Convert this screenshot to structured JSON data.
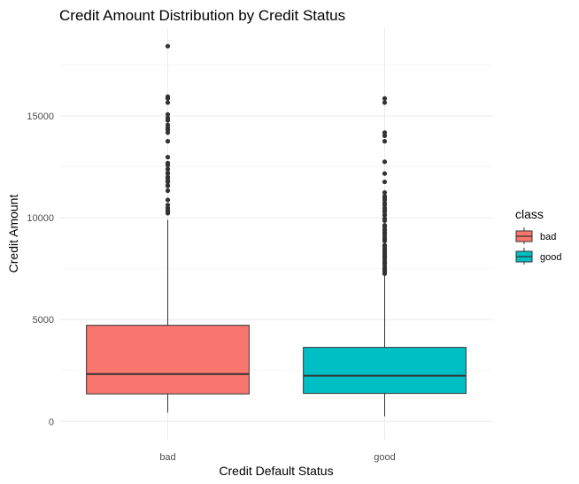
{
  "chart_data": {
    "type": "boxplot",
    "title": "Credit Amount Distribution by Credit Status",
    "xlabel": "Credit Default Status",
    "ylabel": "Credit Amount",
    "categories": [
      "bad",
      "good"
    ],
    "ylim": [
      -900,
      19300
    ],
    "yticks": [
      0,
      5000,
      10000,
      15000
    ],
    "grid": true,
    "legend": {
      "title": "class",
      "position": "right",
      "entries": [
        {
          "label": "bad",
          "color": "#F8766D"
        },
        {
          "label": "good",
          "color": "#00BFC4"
        }
      ]
    },
    "series": [
      {
        "category": "bad",
        "color": "#F8766D",
        "whisker_low": 433,
        "q1": 1352,
        "median": 2324,
        "q3": 4720,
        "whisker_high": 9898,
        "outliers": [
          10222,
          10297,
          10366,
          10477,
          10623,
          10875,
          11328,
          11560,
          11590,
          11760,
          11816,
          11938,
          11998,
          12169,
          12204,
          12389,
          12579,
          12680,
          12976,
          13756,
          14179,
          14318,
          14421,
          14555,
          14782,
          14896,
          15072,
          15653,
          15857,
          15945,
          18424
        ]
      },
      {
        "category": "good",
        "color": "#00BFC4",
        "whisker_low": 250,
        "q1": 1376,
        "median": 2244,
        "q3": 3634,
        "whisker_high": 7174,
        "outliers": [
          7253,
          7297,
          7393,
          7476,
          7485,
          7596,
          7721,
          7758,
          7824,
          7855,
          7966,
          8065,
          8133,
          8229,
          8318,
          8386,
          8471,
          8588,
          8613,
          8648,
          8858,
          8947,
          9034,
          9157,
          9271,
          9277,
          9398,
          9436,
          9566,
          9572,
          9629,
          9857,
          9960,
          10127,
          10144,
          10297,
          10366,
          10477,
          10623,
          10722,
          10875,
          10961,
          11054,
          11238,
          11760,
          12169,
          12749,
          13756,
          14027,
          14179,
          15653,
          15857
        ]
      }
    ]
  }
}
